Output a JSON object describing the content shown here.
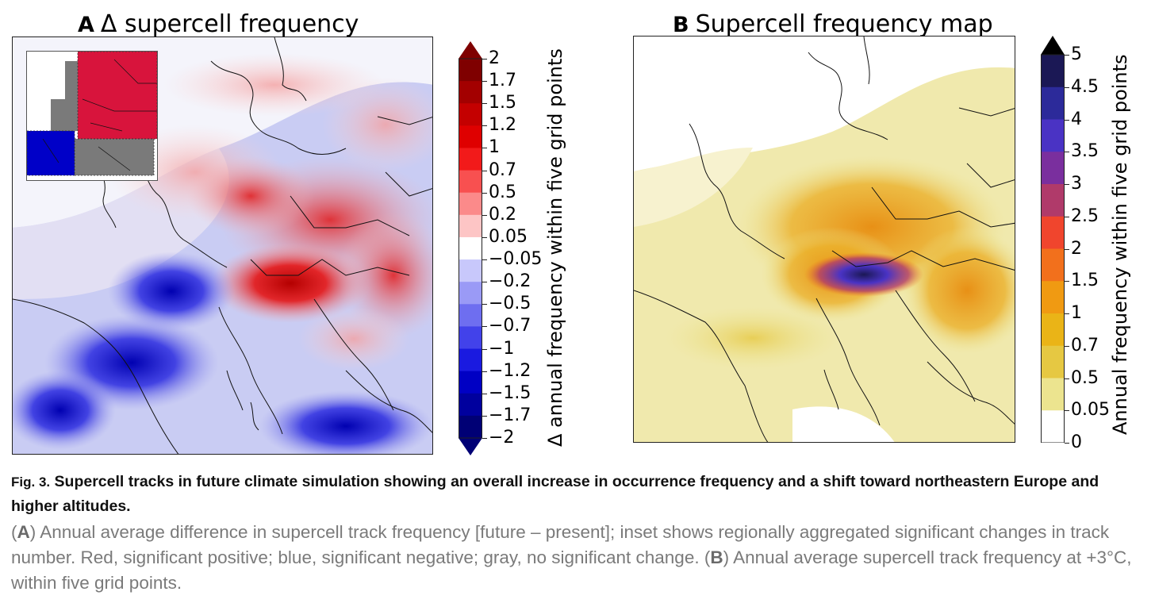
{
  "panel_a": {
    "letter": "A",
    "title": "Δ supercell frequency",
    "colorbar_label": "Δ annual frequency within five grid points",
    "ticks": [
      "2",
      "1.7",
      "1.5",
      "1.2",
      "1",
      "0.7",
      "0.5",
      "0.2",
      "0.05",
      "−0.05",
      "−0.2",
      "−0.5",
      "−0.7",
      "−1",
      "−1.2",
      "−1.5",
      "−1.7",
      "−2"
    ],
    "colors": [
      "#7f0000",
      "#a30000",
      "#c40000",
      "#df0000",
      "#f21a1a",
      "#f85050",
      "#fb8a8a",
      "#fdc5c5",
      "#ffffff",
      "#c8c8fb",
      "#9a9af6",
      "#6e6ef0",
      "#4242ea",
      "#1a1ae0",
      "#0000c4",
      "#00009e",
      "#000075"
    ],
    "inset_colors": {
      "positive": "#d8143c",
      "negative": "#0000c8",
      "none": "#7a7a7a"
    }
  },
  "panel_b": {
    "letter": "B",
    "title": "Supercell frequency map",
    "colorbar_label": "Annual frequency within five grid points",
    "ticks": [
      "5",
      "4.5",
      "4",
      "3.5",
      "3",
      "2.5",
      "2",
      "1.5",
      "1",
      "0.7",
      "0.5",
      "0.05",
      "0"
    ],
    "colors": [
      "#1b1855",
      "#2c2a9a",
      "#4a33c4",
      "#7a2f9e",
      "#b03a6a",
      "#f0452d",
      "#f2701c",
      "#f09a12",
      "#eab417",
      "#e6c842",
      "#ece48f",
      "#ffffff"
    ]
  },
  "caption": {
    "fig_label": "Fig. 3.",
    "heading": "Supercell tracks in future climate simulation showing an overall increase in occurrence frequency and a shift toward northeastern Europe and higher altitudes.",
    "body_a_letter": "A",
    "body_a": "Annual average difference in supercell track frequency [future – present]; inset shows regionally aggregated significant changes in track number. Red, significant positive; blue, significant negative; gray, no significant change.",
    "body_b_letter": "B",
    "body_b": "Annual average supercell track frequency at +3°C, within five grid points."
  }
}
